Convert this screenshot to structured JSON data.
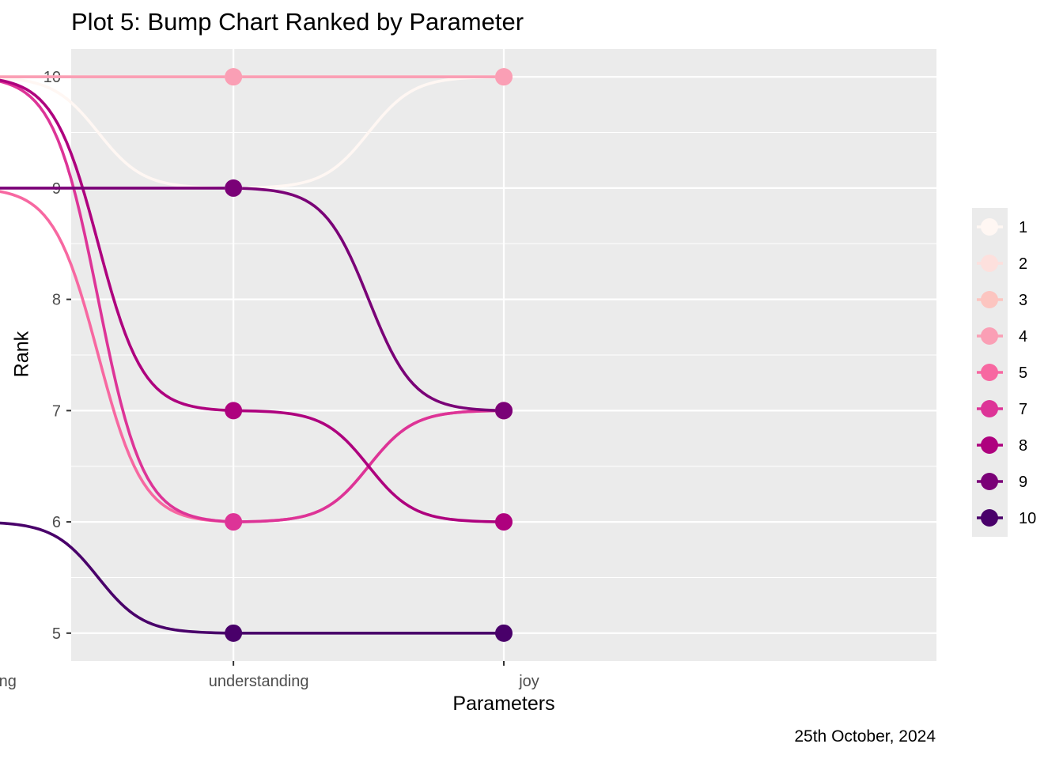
{
  "chart_data": {
    "type": "line",
    "title": "Plot 5: Bump Chart Ranked by Parameter",
    "caption": "25th October, 2024",
    "xlabel": "Parameters",
    "ylabel": "Rank",
    "categories": [
      "learning",
      "understanding",
      "joy"
    ],
    "ylim": [
      4.75,
      10.25
    ],
    "yticks": [
      5,
      6,
      7,
      8,
      9,
      10
    ],
    "grid": true,
    "legend_position": "right",
    "series": [
      {
        "name": "1",
        "values": [
          10,
          9,
          10
        ],
        "color": "#FFF7F3"
      },
      {
        "name": "2",
        "values": [
          10,
          10,
          10
        ],
        "color": "#FDE0DD"
      },
      {
        "name": "3",
        "values": [
          10,
          10,
          10
        ],
        "color": "#FCC5C0"
      },
      {
        "name": "4",
        "values": [
          10,
          10,
          10
        ],
        "color": "#FA9FB5"
      },
      {
        "name": "5",
        "values": [
          9,
          6,
          7
        ],
        "color": "#F768A1"
      },
      {
        "name": "7",
        "values": [
          10,
          6,
          7
        ],
        "color": "#DD3497"
      },
      {
        "name": "8",
        "values": [
          10,
          7,
          6
        ],
        "color": "#AE017E"
      },
      {
        "name": "9",
        "values": [
          9,
          9,
          7
        ],
        "color": "#7A0177"
      },
      {
        "name": "10",
        "values": [
          6,
          5,
          5
        ],
        "color": "#49006A"
      }
    ]
  }
}
